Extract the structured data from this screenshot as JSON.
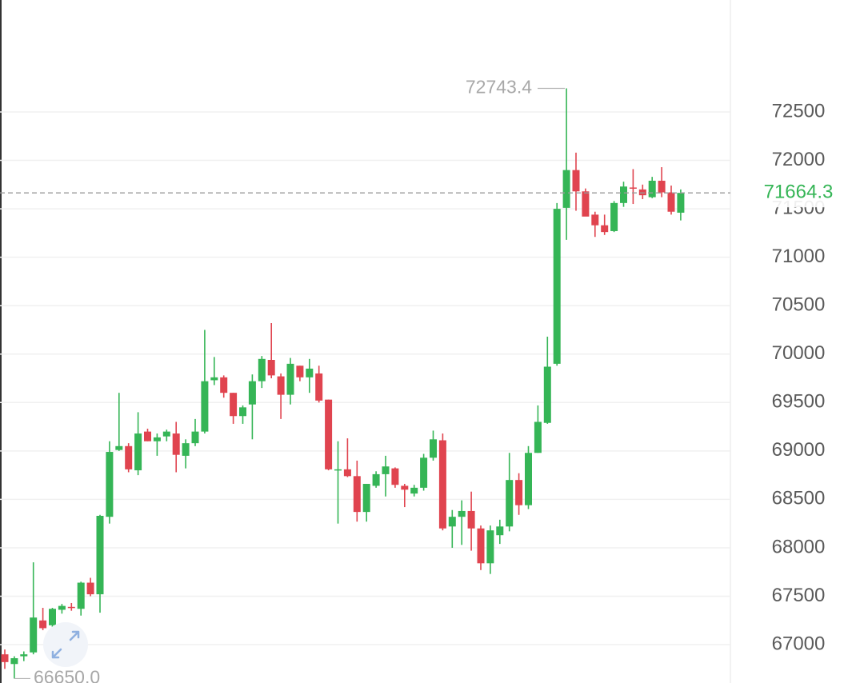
{
  "chart_data": {
    "type": "candlestick",
    "up_color": "#35b556",
    "down_color": "#e0444f",
    "grid": true,
    "ylim": [
      66604,
      73656
    ],
    "yticks": [
      67000,
      67500,
      68000,
      68500,
      69000,
      69500,
      70000,
      70500,
      71000,
      71500,
      72000,
      72500
    ],
    "last_price": 71664.3,
    "max_annotation": 72743.4,
    "min_annotation": {
      "value": 66650,
      "label": "66650.0"
    },
    "open": [
      66900,
      66800,
      66880,
      66920,
      67250,
      67200,
      67360,
      67390,
      67370,
      67640,
      67520,
      68320,
      69010,
      69050,
      68800,
      69200,
      69100,
      69150,
      69180,
      68950,
      69080,
      69200,
      69730,
      69760,
      69600,
      69360,
      69480,
      69720,
      69940,
      69770,
      69580,
      69880,
      69760,
      69800,
      69530,
      68800,
      68810,
      68740,
      68370,
      68640,
      68760,
      68820,
      68640,
      68560,
      68620,
      68930,
      69110,
      68220,
      68320,
      68380,
      68200,
      67840,
      68130,
      68220,
      68700,
      68440,
      68980,
      69290,
      69900,
      71510,
      71900,
      71680,
      71440,
      71330,
      71270,
      71560,
      71720,
      71700,
      71620,
      71790,
      71670,
      71460
    ],
    "high": [
      66950,
      66880,
      66930,
      67850,
      67380,
      67380,
      67420,
      67430,
      67650,
      67690,
      68340,
      69100,
      69600,
      69080,
      69400,
      69230,
      69180,
      69220,
      69300,
      69120,
      69330,
      70250,
      69970,
      69780,
      69600,
      69470,
      69790,
      69980,
      70320,
      69800,
      69960,
      69880,
      69950,
      69880,
      69530,
      69100,
      69130,
      68900,
      68660,
      68790,
      68950,
      68830,
      68660,
      68650,
      68970,
      69210,
      69180,
      68390,
      68490,
      68580,
      68230,
      68230,
      68290,
      68980,
      68770,
      69050,
      69470,
      70180,
      71560,
      72743.4,
      72080,
      71710,
      71470,
      71440,
      71580,
      71780,
      71910,
      71750,
      71830,
      71930,
      71740,
      71700
    ],
    "low": [
      66750,
      66650,
      66830,
      66900,
      67150,
      67180,
      67320,
      67350,
      67300,
      67500,
      67330,
      68250,
      69000,
      68780,
      68750,
      69100,
      68950,
      69100,
      68780,
      68820,
      69050,
      69180,
      69680,
      69550,
      69280,
      69280,
      69120,
      69650,
      69750,
      69330,
      69480,
      69720,
      69600,
      69500,
      68800,
      68250,
      68730,
      68270,
      68270,
      68620,
      68530,
      68620,
      68420,
      68530,
      68590,
      68900,
      68180,
      68000,
      68030,
      67970,
      67770,
      67730,
      68040,
      68170,
      68340,
      68400,
      68980,
      69280,
      69880,
      71180,
      71480,
      71430,
      71210,
      71230,
      71260,
      71520,
      71550,
      71600,
      71610,
      71620,
      71440,
      71380
    ],
    "close": [
      66820,
      66860,
      66900,
      67280,
      67170,
      67370,
      67400,
      67380,
      67640,
      67520,
      68330,
      68990,
      69050,
      68810,
      69180,
      69100,
      69140,
      69200,
      68960,
      69080,
      69200,
      69720,
      69760,
      69600,
      69360,
      69450,
      69720,
      69950,
      69780,
      69580,
      69900,
      69760,
      69850,
      69520,
      68810,
      68810,
      68740,
      68370,
      68660,
      68760,
      68840,
      68650,
      68600,
      68620,
      68930,
      69120,
      68200,
      68320,
      68380,
      68200,
      67840,
      68180,
      68220,
      68700,
      68440,
      68980,
      69300,
      69870,
      71500,
      71900,
      71680,
      71420,
      71330,
      71260,
      71560,
      71730,
      71710,
      71640,
      71790,
      71670,
      71470,
      71664.3
    ]
  }
}
